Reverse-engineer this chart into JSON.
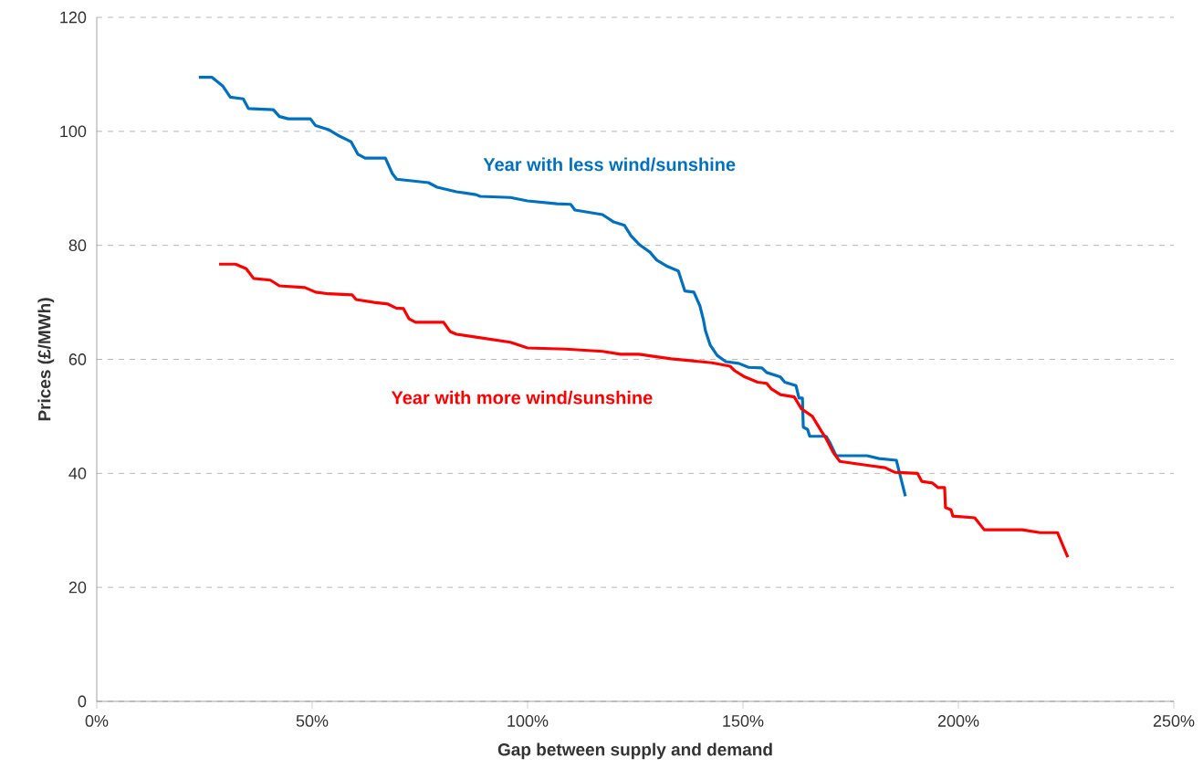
{
  "chart_data": {
    "type": "line",
    "xlabel": "Gap between supply and demand",
    "ylabel": "Prices (£/MWh)",
    "xlim": [
      0,
      250
    ],
    "ylim": [
      0,
      120
    ],
    "xticks": [
      {
        "value": 0,
        "label": "0%"
      },
      {
        "value": 50,
        "label": "50%"
      },
      {
        "value": 100,
        "label": "100%"
      },
      {
        "value": 150,
        "label": "150%"
      },
      {
        "value": 200,
        "label": "200%"
      },
      {
        "value": 250,
        "label": "250%"
      }
    ],
    "yticks": [
      0,
      20,
      40,
      60,
      80,
      100,
      120
    ],
    "grid": "y",
    "legend": false,
    "marker": "none",
    "line_style": "solid",
    "series": [
      {
        "name": "Year with less wind/sunshine",
        "color": "#0070c0",
        "x": [
          23.7,
          26.7,
          29.2,
          31,
          34,
          35.2,
          41,
          42.4,
          44.5,
          49.6,
          50.8,
          53.8,
          56,
          59,
          60.6,
          62.3,
          67,
          68.6,
          69.6,
          77,
          79,
          83.5,
          88,
          89,
          96,
          100,
          106.8,
          110,
          111,
          117.4,
          120,
          122.5,
          124,
          126,
          128.4,
          130,
          132.5,
          135,
          136.5,
          138.6,
          140,
          140.8,
          141.3,
          142.4,
          144,
          146,
          149,
          151.3,
          154.4,
          155.5,
          158.7,
          159.7,
          162.3,
          163,
          163.8,
          164,
          165,
          165.5,
          169.3,
          170.3,
          171.6,
          178.8,
          181.6,
          185.6,
          187.7
        ],
        "values": [
          109.5,
          109.5,
          108,
          106,
          105.7,
          104,
          103.8,
          102.6,
          102.2,
          102.2,
          101,
          100.3,
          99.3,
          98.2,
          96,
          95.3,
          95.3,
          92.6,
          91.6,
          91,
          90.2,
          89.4,
          88.9,
          88.6,
          88.4,
          87.8,
          87.3,
          87.2,
          86.2,
          85.4,
          84.1,
          83.5,
          81.7,
          80.1,
          78.8,
          77.4,
          76.3,
          75.5,
          72,
          71.8,
          69.4,
          67,
          65,
          62.5,
          60.7,
          59.6,
          59.3,
          58.6,
          58.5,
          57.7,
          56.9,
          56,
          55.4,
          53.2,
          53.2,
          48.1,
          47.7,
          46.5,
          46.5,
          45.2,
          43.1,
          43.1,
          42.6,
          42.3,
          36
        ]
      },
      {
        "name": "Year with more wind/sunshine",
        "color": "#ff0000",
        "x": [
          28.4,
          32.2,
          34.7,
          36.4,
          40.3,
          42.4,
          48.3,
          50.8,
          53.8,
          59.3,
          60.2,
          64.4,
          67.6,
          69.5,
          71.2,
          72.5,
          74,
          80.5,
          82,
          83.5,
          88,
          96,
          100,
          108.9,
          117.4,
          121.6,
          125.8,
          133.3,
          142.8,
          147,
          148.1,
          150.2,
          153.4,
          155.5,
          156.6,
          158.7,
          161.9,
          163.6,
          166.1,
          168.2,
          169.3,
          171,
          172.5,
          180,
          183,
          185.2,
          190.5,
          191.5,
          194,
          195.3,
          196.8,
          197,
          198.3,
          198.7,
          203.8,
          206,
          214.8,
          219,
          223,
          225.4
        ],
        "values": [
          76.7,
          76.7,
          75.9,
          74.2,
          73.9,
          72.9,
          72.6,
          71.8,
          71.5,
          71.3,
          70.5,
          70,
          69.7,
          69,
          68.9,
          67.1,
          66.5,
          66.5,
          64.9,
          64.4,
          63.9,
          63,
          62,
          61.8,
          61.4,
          60.9,
          60.9,
          60.1,
          59.4,
          58.8,
          58,
          57,
          56,
          55.8,
          54.8,
          53.8,
          53.4,
          51.3,
          50,
          47.4,
          46.1,
          43.6,
          42.1,
          41.3,
          41,
          40.2,
          40,
          38.6,
          38.3,
          37.5,
          37.5,
          34,
          33.6,
          32.5,
          32.2,
          30.1,
          30.1,
          29.6,
          29.6,
          25.3
        ]
      }
    ]
  }
}
